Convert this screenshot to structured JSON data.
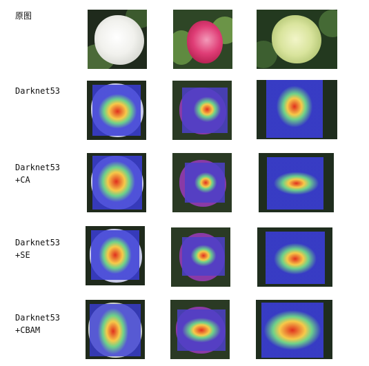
{
  "rows": [
    {
      "label": "原图",
      "kind": "original"
    },
    {
      "label": "Darknet53",
      "kind": "heatmap"
    },
    {
      "label": "Darknet53\n+CA",
      "kind": "heatmap"
    },
    {
      "label": "Darknet53\n+SE",
      "kind": "heatmap"
    },
    {
      "label": "Darknet53\n+CBAM",
      "kind": "heatmap"
    }
  ],
  "columns": [
    {
      "flower": "white-peony",
      "petal_color": "#eeeeea"
    },
    {
      "flower": "pink-peony",
      "petal_color": "#d8336c"
    },
    {
      "flower": "green-peony",
      "petal_color": "#d6e29a"
    }
  ],
  "colors": {
    "foliage_dark": "#1f2a1c",
    "foliage_mid": "#3f5a2f",
    "heat_hot": "#e0301e",
    "heat_warm": "#f6c94a",
    "heat_mid": "#6ed18a",
    "heat_cold": "#3a3dd6"
  }
}
